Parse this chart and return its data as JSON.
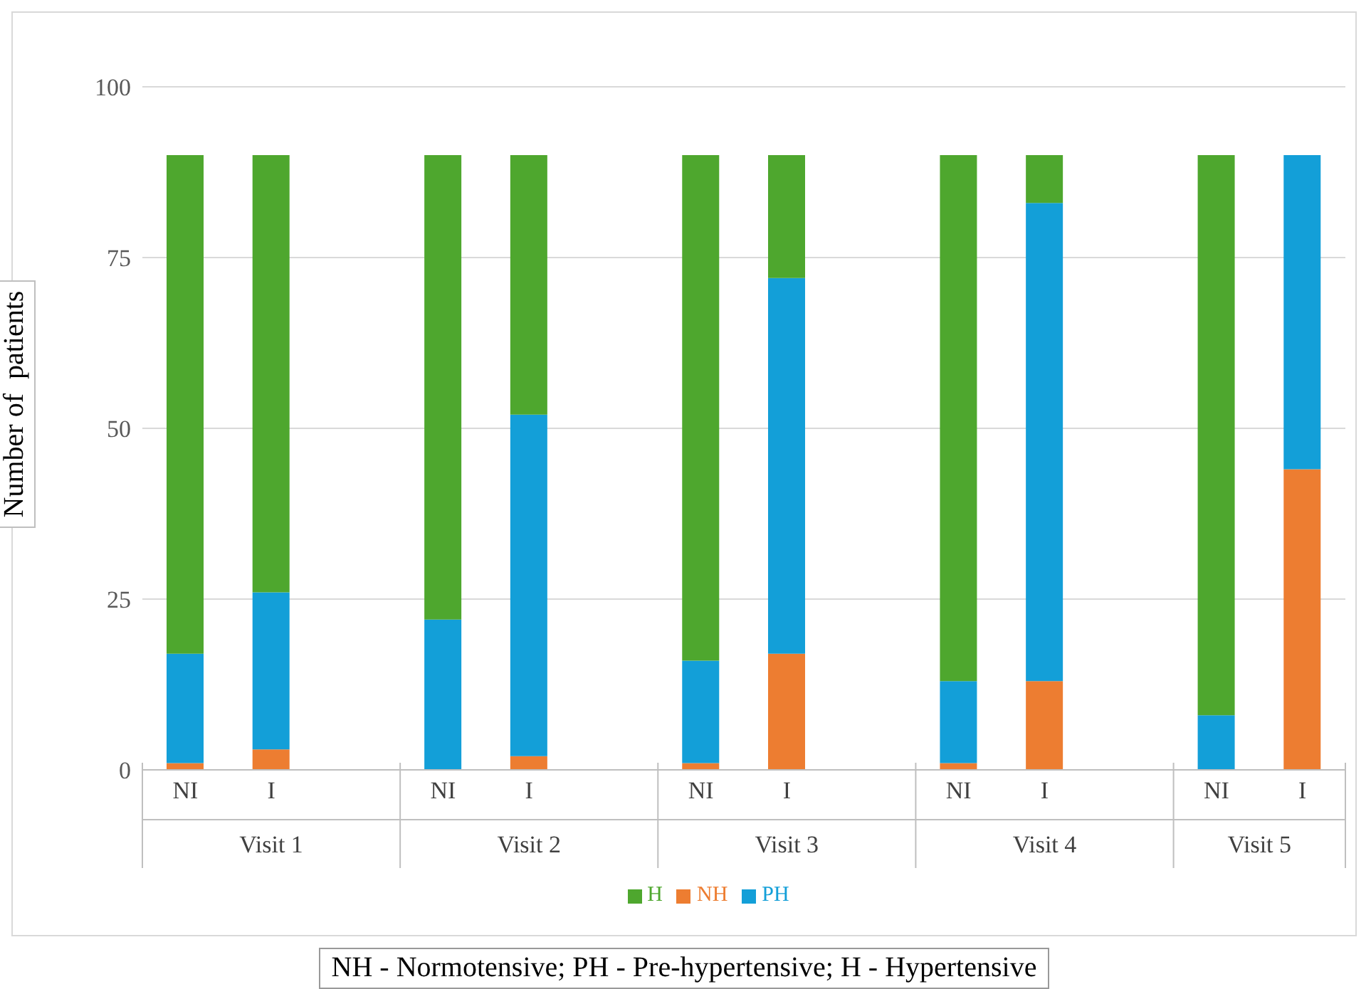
{
  "chart_data": {
    "type": "bar",
    "stacked": true,
    "ylabel": "Number of  patients",
    "categories": [
      "NI",
      "I",
      null,
      "NI",
      "I",
      null,
      "NI",
      "I",
      null,
      "NI",
      "I",
      null,
      "NI",
      "I"
    ],
    "series": [
      {
        "name": "NH",
        "color": "#ed7d31",
        "values": [
          1,
          3,
          null,
          0,
          2,
          null,
          1,
          17,
          null,
          1,
          13,
          null,
          0,
          44
        ]
      },
      {
        "name": "PH",
        "color": "#139fd8",
        "values": [
          16,
          23,
          null,
          22,
          50,
          null,
          15,
          55,
          null,
          12,
          70,
          null,
          8,
          46
        ]
      },
      {
        "name": "H",
        "color": "#4ea72e",
        "values": [
          73,
          64,
          null,
          68,
          38,
          null,
          74,
          18,
          null,
          77,
          7,
          null,
          82,
          0
        ]
      }
    ],
    "ylim": [
      0,
      100
    ],
    "yticks": [
      0,
      25,
      50,
      75,
      100
    ],
    "grid": "y",
    "legend": "bottom",
    "annotations": [
      "Visit 1",
      "Visit 2",
      "Visit 3",
      "Visit 4",
      "Visit 5",
      "NH - Normotensive; PH - Pre-hypertensive; H - Hypertensive"
    ]
  }
}
